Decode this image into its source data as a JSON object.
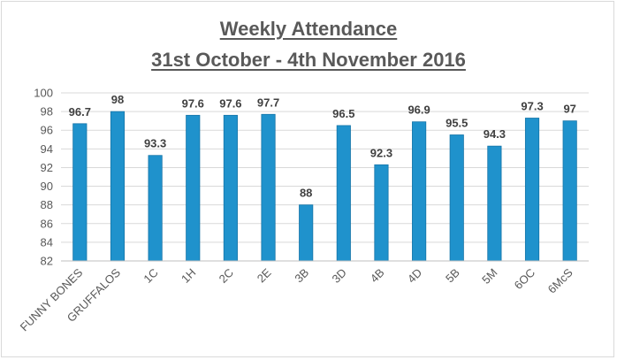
{
  "chart_data": {
    "type": "bar",
    "title": "Weekly Attendance",
    "subtitle": "31st October - 4th November 2016",
    "xlabel": "",
    "ylabel": "",
    "categories": [
      "FUNNY BONES",
      "GRUFFALOS",
      "1C",
      "1H",
      "2C",
      "2E",
      "3B",
      "3D",
      "4B",
      "4D",
      "5B",
      "5M",
      "6OC",
      "6McS"
    ],
    "values": [
      96.7,
      98,
      93.3,
      97.6,
      97.6,
      97.7,
      88,
      96.5,
      92.3,
      96.9,
      95.5,
      94.3,
      97.3,
      97
    ],
    "data_labels": [
      "96.7",
      "98",
      "93.3",
      "97.6",
      "97.6",
      "97.7",
      "88",
      "96.5",
      "92.3",
      "96.9",
      "95.5",
      "94.3",
      "97.3",
      "97"
    ],
    "ylim": [
      82,
      100
    ],
    "yticks": [
      82,
      84,
      86,
      88,
      90,
      92,
      94,
      96,
      98,
      100
    ],
    "grid": true,
    "legend": "none",
    "bar_color": "#1f92cc",
    "bar_edge_color": "#1675a8"
  }
}
